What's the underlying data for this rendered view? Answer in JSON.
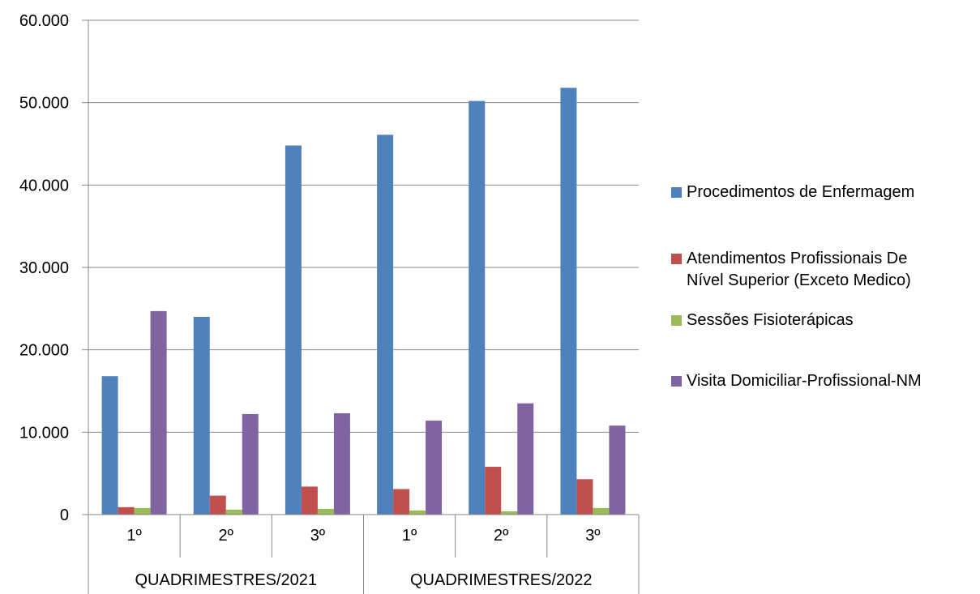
{
  "chart_data": {
    "type": "bar",
    "title": "",
    "xlabel": "",
    "ylabel": "",
    "ylim": [
      0,
      60000
    ],
    "yticks": [
      0,
      10000,
      20000,
      30000,
      40000,
      50000,
      60000
    ],
    "ytick_labels": [
      "0",
      "10.000",
      "20.000",
      "30.000",
      "40.000",
      "50.000",
      "60.000"
    ],
    "grid": true,
    "legend_position": "right",
    "categories": [
      "1º",
      "2º",
      "3º",
      "1º",
      "2º",
      "3º"
    ],
    "groups": [
      {
        "label": "QUADRIMESTRES/2021",
        "span": 3
      },
      {
        "label": "QUADRIMESTRES/2022",
        "span": 3
      }
    ],
    "series": [
      {
        "name": "Procedimentos de Enfermagem",
        "color": "#4F81BD",
        "values": [
          16800,
          24000,
          44800,
          46100,
          50200,
          51800
        ]
      },
      {
        "name": "Atendimentos Profissionais De\nNível Superior (Exceto Medico)",
        "color": "#C0504D",
        "values": [
          900,
          2300,
          3400,
          3100,
          5800,
          4300
        ]
      },
      {
        "name": "Sessões Fisioterápicas",
        "color": "#9BBB59",
        "values": [
          800,
          600,
          700,
          500,
          400,
          800
        ]
      },
      {
        "name": "Visita Domiciliar-Profissional-NM",
        "color": "#8064A2",
        "values": [
          24700,
          12200,
          12300,
          11400,
          13500,
          10800
        ]
      }
    ]
  }
}
